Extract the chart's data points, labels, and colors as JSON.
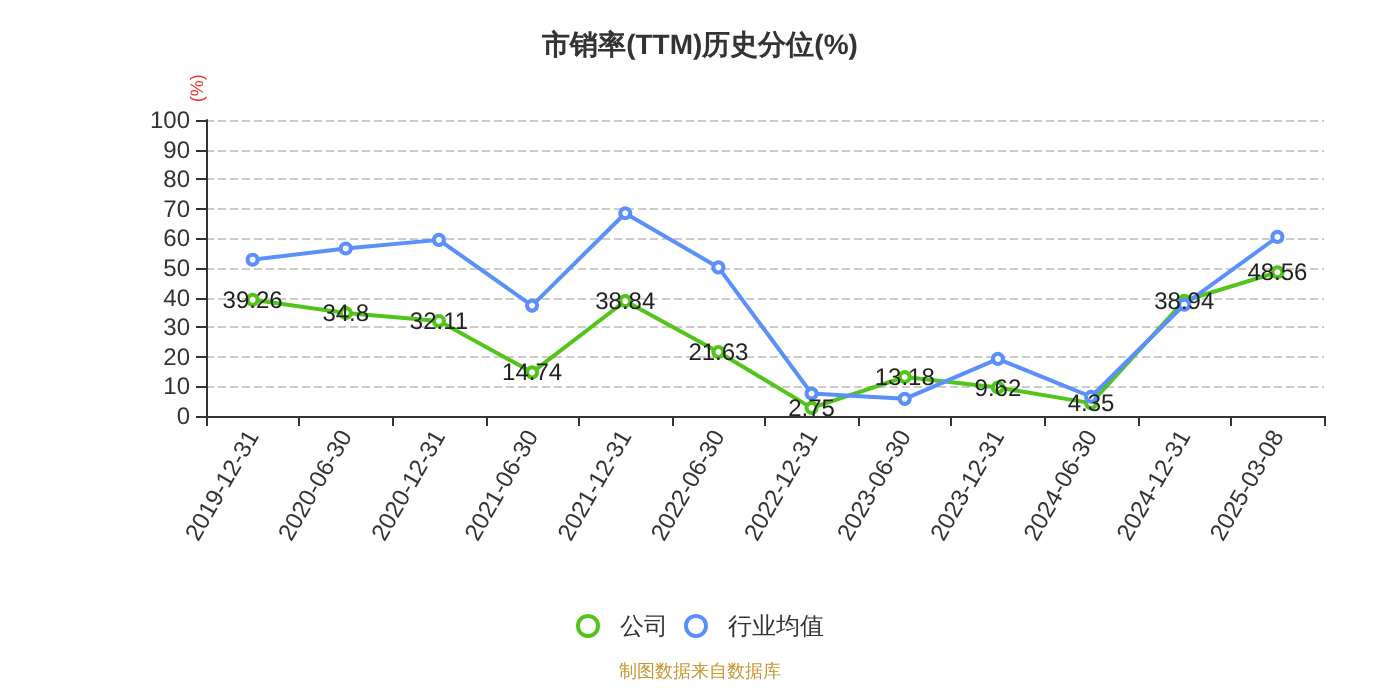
{
  "chart_data": {
    "type": "line",
    "title": "市销率(TTM)历史分位(%)",
    "ylabel": "(%)",
    "categories": [
      "2019-12-31",
      "2020-06-30",
      "2020-12-31",
      "2021-06-30",
      "2021-12-31",
      "2022-06-30",
      "2022-12-31",
      "2023-06-30",
      "2023-12-31",
      "2024-06-30",
      "2024-12-31",
      "2025-03-08"
    ],
    "series": [
      {
        "name": "公司",
        "color": "#52c41a",
        "values": [
          39.26,
          34.8,
          32.11,
          14.74,
          38.84,
          21.63,
          2.75,
          13.18,
          9.62,
          4.35,
          38.94,
          48.56
        ],
        "value_labels": [
          "39.26",
          "34.8",
          "32.11",
          "14.74",
          "38.84",
          "21.63",
          "2.75",
          "13.18",
          "9.62",
          "4.35",
          "38.94",
          "48.56"
        ]
      },
      {
        "name": "行业均值",
        "color": "#5b8ff9",
        "values": [
          52.8,
          56.6,
          59.5,
          37.3,
          68.5,
          50.2,
          7.6,
          5.8,
          19.3,
          6.5,
          37.6,
          60.5
        ]
      }
    ],
    "ylim": [
      0,
      100
    ],
    "yticks": [
      0,
      10,
      20,
      30,
      40,
      50,
      60,
      70,
      80,
      90,
      100
    ],
    "grid": "y",
    "legend": "bottom",
    "marker": "circle",
    "line_style": "solid",
    "annotations": [
      "制图数据来自数据库"
    ]
  }
}
